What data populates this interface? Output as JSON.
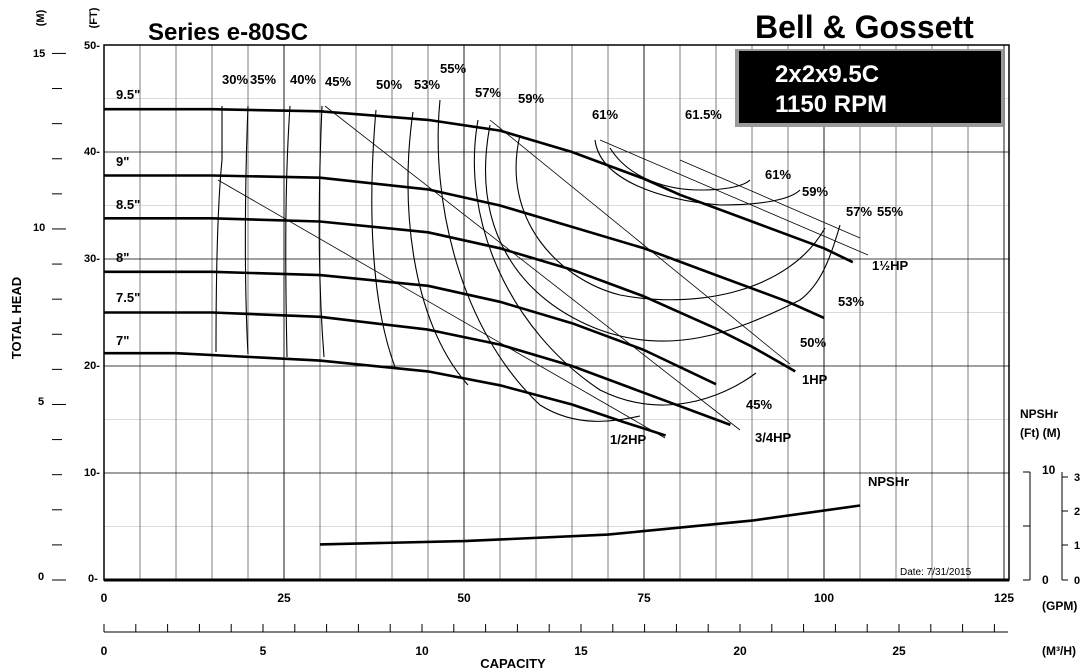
{
  "header": {
    "series": "Series e-80SC",
    "brand": "Bell & Gossett",
    "model": "2x2x9.5C",
    "rpm": "1150 RPM"
  },
  "axes": {
    "head_unit_m": "(M)",
    "head_unit_ft": "(FT)",
    "ylabel": "TOTAL HEAD",
    "xlabel": "CAPACITY",
    "gpm_unit": "(GPM)",
    "m3h_unit": "(M³/H)",
    "ft_ticks": [
      "50-",
      "40-",
      "30-",
      "20-",
      "10-",
      "0-"
    ],
    "m_ticks": [
      "15",
      "10",
      "5",
      "0"
    ],
    "gpm_ticks": [
      "0",
      "25",
      "50",
      "75",
      "100",
      "125"
    ],
    "m3h_ticks": [
      "0",
      "5",
      "10",
      "15",
      "20",
      "25"
    ],
    "npsh_title": "NPSHr",
    "npsh_units": "(Ft)   (M)",
    "npsh_ft_ticks": [
      "10",
      "0"
    ],
    "npsh_m_ticks": [
      "3",
      "2",
      "1",
      "0"
    ]
  },
  "date": "Date: 7/31/2015",
  "chart_data": {
    "type": "line",
    "title": "Series e-80SC",
    "xlabel": "CAPACITY (GPM)",
    "ylabel": "TOTAL HEAD (FT)",
    "xlim": [
      0,
      125
    ],
    "ylim": [
      0,
      50
    ],
    "impeller_curves": [
      {
        "name": "9.5\"",
        "points": [
          [
            0,
            44.0
          ],
          [
            15,
            44.0
          ],
          [
            30,
            43.8
          ],
          [
            45,
            43.0
          ],
          [
            55,
            42.0
          ],
          [
            65,
            40.0
          ],
          [
            75,
            37.5
          ],
          [
            80,
            36.0
          ],
          [
            90,
            33.5
          ],
          [
            100,
            31.0
          ],
          [
            104,
            29.7
          ]
        ]
      },
      {
        "name": "9\"",
        "points": [
          [
            0,
            37.8
          ],
          [
            15,
            37.8
          ],
          [
            30,
            37.6
          ],
          [
            45,
            36.5
          ],
          [
            55,
            35.0
          ],
          [
            65,
            33.0
          ],
          [
            75,
            31.0
          ],
          [
            85,
            28.5
          ],
          [
            95,
            26.0
          ],
          [
            100,
            24.5
          ]
        ]
      },
      {
        "name": "8.5\"",
        "points": [
          [
            0,
            33.8
          ],
          [
            15,
            33.8
          ],
          [
            30,
            33.5
          ],
          [
            45,
            32.5
          ],
          [
            55,
            31.0
          ],
          [
            65,
            29.0
          ],
          [
            75,
            26.5
          ],
          [
            85,
            23.5
          ],
          [
            90,
            21.8
          ],
          [
            96,
            19.5
          ]
        ]
      },
      {
        "name": "8\"",
        "points": [
          [
            0,
            28.8
          ],
          [
            15,
            28.8
          ],
          [
            30,
            28.5
          ],
          [
            45,
            27.5
          ],
          [
            55,
            26.0
          ],
          [
            65,
            24.0
          ],
          [
            75,
            21.5
          ],
          [
            85,
            18.3
          ]
        ]
      },
      {
        "name": "7.5\"",
        "points": [
          [
            0,
            25.0
          ],
          [
            15,
            25.0
          ],
          [
            30,
            24.6
          ],
          [
            45,
            23.4
          ],
          [
            55,
            22.0
          ],
          [
            65,
            20.0
          ],
          [
            75,
            17.5
          ],
          [
            87,
            14.5
          ]
        ]
      },
      {
        "name": "7\"",
        "points": [
          [
            0,
            21.2
          ],
          [
            10,
            21.2
          ],
          [
            30,
            20.5
          ],
          [
            45,
            19.5
          ],
          [
            55,
            18.2
          ],
          [
            65,
            16.4
          ],
          [
            72,
            14.8
          ],
          [
            78,
            13.5
          ]
        ]
      }
    ],
    "efficiency_labels": [
      "30%",
      "35%",
      "40%",
      "45%",
      "50%",
      "53%",
      "55%",
      "57%",
      "59%",
      "61%",
      "61.5%",
      "61%",
      "59%",
      "57%",
      "55%",
      "53%",
      "50%",
      "45%"
    ],
    "power_labels": [
      "1/2HP",
      "3/4HP",
      "1HP",
      "1½HP"
    ],
    "npshr": {
      "name": "NPSHr",
      "ylim_ft": [
        0,
        10
      ],
      "points": [
        [
          30,
          3.3
        ],
        [
          50,
          3.6
        ],
        [
          70,
          4.2
        ],
        [
          90,
          5.5
        ],
        [
          105,
          6.9
        ]
      ]
    }
  }
}
